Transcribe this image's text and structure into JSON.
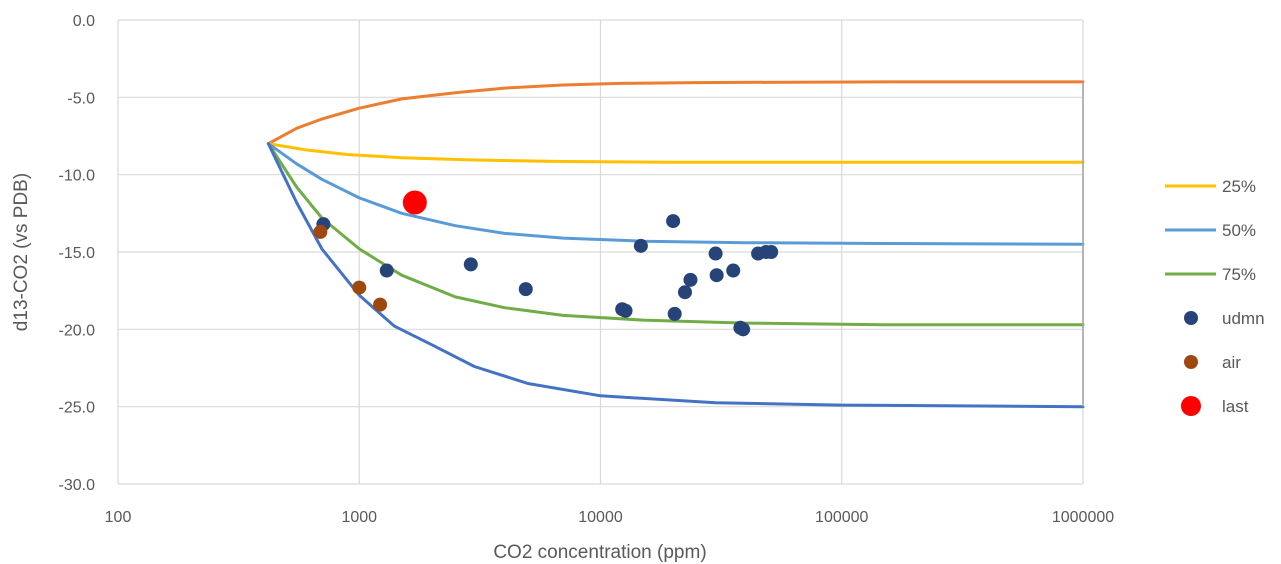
{
  "chart_data": {
    "type": "scatter",
    "title": "",
    "xlabel": "CO2 concentration (ppm)",
    "ylabel": "d13-CO2 (vs PDB)",
    "xscale": "log",
    "xlim": [
      100,
      1000000
    ],
    "ylim": [
      -30,
      0
    ],
    "x_ticks": [
      100,
      1000,
      10000,
      100000,
      1000000
    ],
    "x_tick_labels": [
      "100",
      "1000",
      "10000",
      "100000",
      "1000000"
    ],
    "y_ticks": [
      0,
      -5,
      -10,
      -15,
      -20,
      -25,
      -30
    ],
    "y_tick_labels": [
      "0.0",
      "-5.0",
      "-10.0",
      "-15.0",
      "-20.0",
      "-25.0",
      "-30.0"
    ],
    "grid": true,
    "legend_position": "right",
    "lines": [
      {
        "name": "",
        "color": "#ED7D31",
        "x": [
          420,
          550,
          700,
          1000,
          1500,
          2500,
          4000,
          7000,
          12000,
          25000,
          60000,
          150000,
          400000,
          1000000
        ],
        "y": [
          -8.0,
          -7.0,
          -6.4,
          -5.7,
          -5.1,
          -4.7,
          -4.4,
          -4.2,
          -4.1,
          -4.05,
          -4.02,
          -4.0,
          -4.0,
          -4.0
        ]
      },
      {
        "name": "25%",
        "color": "#FFC000",
        "x": [
          420,
          600,
          900,
          1500,
          3000,
          7000,
          20000,
          100000,
          1000000
        ],
        "y": [
          -8.0,
          -8.4,
          -8.7,
          -8.9,
          -9.05,
          -9.15,
          -9.2,
          -9.2,
          -9.2
        ]
      },
      {
        "name": "50%",
        "color": "#5B9BD5",
        "x": [
          420,
          550,
          700,
          1000,
          1500,
          2500,
          4000,
          7000,
          15000,
          40000,
          150000,
          1000000
        ],
        "y": [
          -8.0,
          -9.3,
          -10.3,
          -11.5,
          -12.5,
          -13.3,
          -13.8,
          -14.1,
          -14.3,
          -14.4,
          -14.45,
          -14.5
        ]
      },
      {
        "name": "75%",
        "color": "#70AD47",
        "x": [
          420,
          550,
          700,
          1000,
          1500,
          2500,
          4000,
          7000,
          15000,
          40000,
          150000,
          1000000
        ],
        "y": [
          -8.0,
          -10.8,
          -12.8,
          -14.8,
          -16.5,
          -17.9,
          -18.6,
          -19.1,
          -19.4,
          -19.6,
          -19.7,
          -19.7
        ]
      },
      {
        "name": "",
        "color": "#4472C4",
        "x": [
          420,
          550,
          700,
          1000,
          1400,
          2000,
          3000,
          5000,
          10000,
          30000,
          100000,
          1000000
        ],
        "y": [
          -8.0,
          -11.8,
          -14.8,
          -17.8,
          -19.8,
          -21.0,
          -22.4,
          -23.5,
          -24.3,
          -24.75,
          -24.9,
          -25.0
        ]
      }
    ],
    "vertical_line": {
      "x": 1000000,
      "y_from": -4.0,
      "y_to": -25.0,
      "color": "#A5A5A5"
    },
    "series": [
      {
        "name": "udmn",
        "color": "#264478",
        "points": [
          {
            "x": 710,
            "y": -13.2
          },
          {
            "x": 1300,
            "y": -16.2
          },
          {
            "x": 2900,
            "y": -15.8
          },
          {
            "x": 4900,
            "y": -17.4
          },
          {
            "x": 12300,
            "y": -18.7
          },
          {
            "x": 12700,
            "y": -18.8
          },
          {
            "x": 14700,
            "y": -14.6
          },
          {
            "x": 20000,
            "y": -13.0
          },
          {
            "x": 20300,
            "y": -19.0
          },
          {
            "x": 22400,
            "y": -17.6
          },
          {
            "x": 23600,
            "y": -16.8
          },
          {
            "x": 30000,
            "y": -15.1
          },
          {
            "x": 30300,
            "y": -16.5
          },
          {
            "x": 35500,
            "y": -16.2
          },
          {
            "x": 38000,
            "y": -19.9
          },
          {
            "x": 39000,
            "y": -20.0
          },
          {
            "x": 45000,
            "y": -15.1
          },
          {
            "x": 48500,
            "y": -15.0
          },
          {
            "x": 51000,
            "y": -15.0
          }
        ]
      },
      {
        "name": "air",
        "color": "#9E480E",
        "points": [
          {
            "x": 690,
            "y": -13.7
          },
          {
            "x": 1000,
            "y": -17.3
          },
          {
            "x": 1220,
            "y": -18.4
          }
        ]
      },
      {
        "name": "last",
        "color": "#FF0000",
        "points": [
          {
            "x": 1700,
            "y": -11.8
          }
        ]
      }
    ]
  }
}
